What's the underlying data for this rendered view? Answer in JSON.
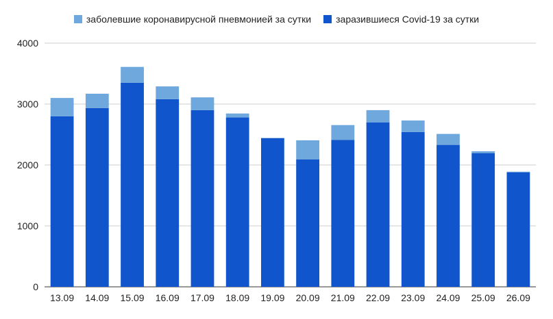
{
  "chart_data": {
    "type": "bar",
    "stacked": true,
    "categories": [
      "13.09",
      "14.09",
      "15.09",
      "16.09",
      "17.09",
      "18.09",
      "19.09",
      "20.09",
      "21.09",
      "22.09",
      "23.09",
      "24.09",
      "25.09",
      "26.09"
    ],
    "series": [
      {
        "name": "заразившиеся Covid-19 за сутки",
        "color": "#1155cc",
        "values": [
          2800,
          2935,
          3350,
          3080,
          2900,
          2780,
          2440,
          2090,
          2410,
          2700,
          2540,
          2330,
          2195,
          1880
        ]
      },
      {
        "name": "заболевшие коронавирусной пневмонией за сутки",
        "color": "#6fa8dc",
        "values": [
          300,
          235,
          260,
          210,
          210,
          65,
          5,
          315,
          245,
          200,
          190,
          180,
          30,
          10
        ]
      }
    ],
    "legend_order": [
      1,
      0
    ],
    "ylim": [
      0,
      4000
    ],
    "yticks": [
      0,
      1000,
      2000,
      3000,
      4000
    ],
    "grid": true,
    "legend_position": "top",
    "title": "",
    "xlabel": "",
    "ylabel": ""
  }
}
